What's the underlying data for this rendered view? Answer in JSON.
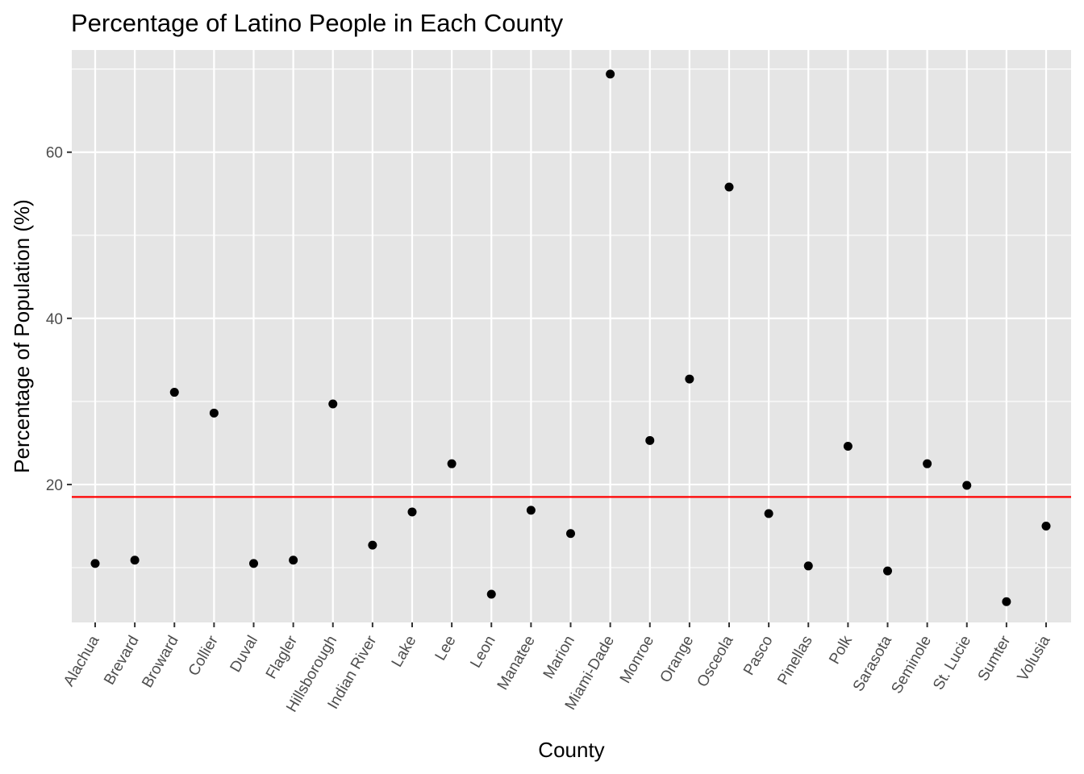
{
  "chart_data": {
    "type": "scatter",
    "title": "Percentage of Latino People in Each County",
    "xlabel": "County",
    "ylabel": "Percentage of Population (%)",
    "categories": [
      "Alachua",
      "Brevard",
      "Broward",
      "Collier",
      "Duval",
      "Flagler",
      "Hillsborough",
      "Indian River",
      "Lake",
      "Lee",
      "Leon",
      "Manatee",
      "Marion",
      "Miami-Dade",
      "Monroe",
      "Orange",
      "Osceola",
      "Pasco",
      "Pinellas",
      "Polk",
      "Sarasota",
      "Seminole",
      "St. Lucie",
      "Sumter",
      "Volusia"
    ],
    "values": [
      10.5,
      10.9,
      31.1,
      28.6,
      10.5,
      10.9,
      29.7,
      12.7,
      16.7,
      22.5,
      6.8,
      16.9,
      14.1,
      69.4,
      25.3,
      32.7,
      55.8,
      16.5,
      10.2,
      24.6,
      9.6,
      22.5,
      19.9,
      5.9,
      15.0
    ],
    "reference_line": {
      "y": 18.5,
      "color": "#ff0000"
    },
    "y_ticks": [
      20,
      40,
      60
    ],
    "ylim": [
      3.4,
      72.3
    ],
    "grid": true,
    "colors": {
      "panel": "#e5e5e5",
      "grid": "#ffffff",
      "point": "#000000",
      "tick_text": "#4d4d4d"
    }
  }
}
